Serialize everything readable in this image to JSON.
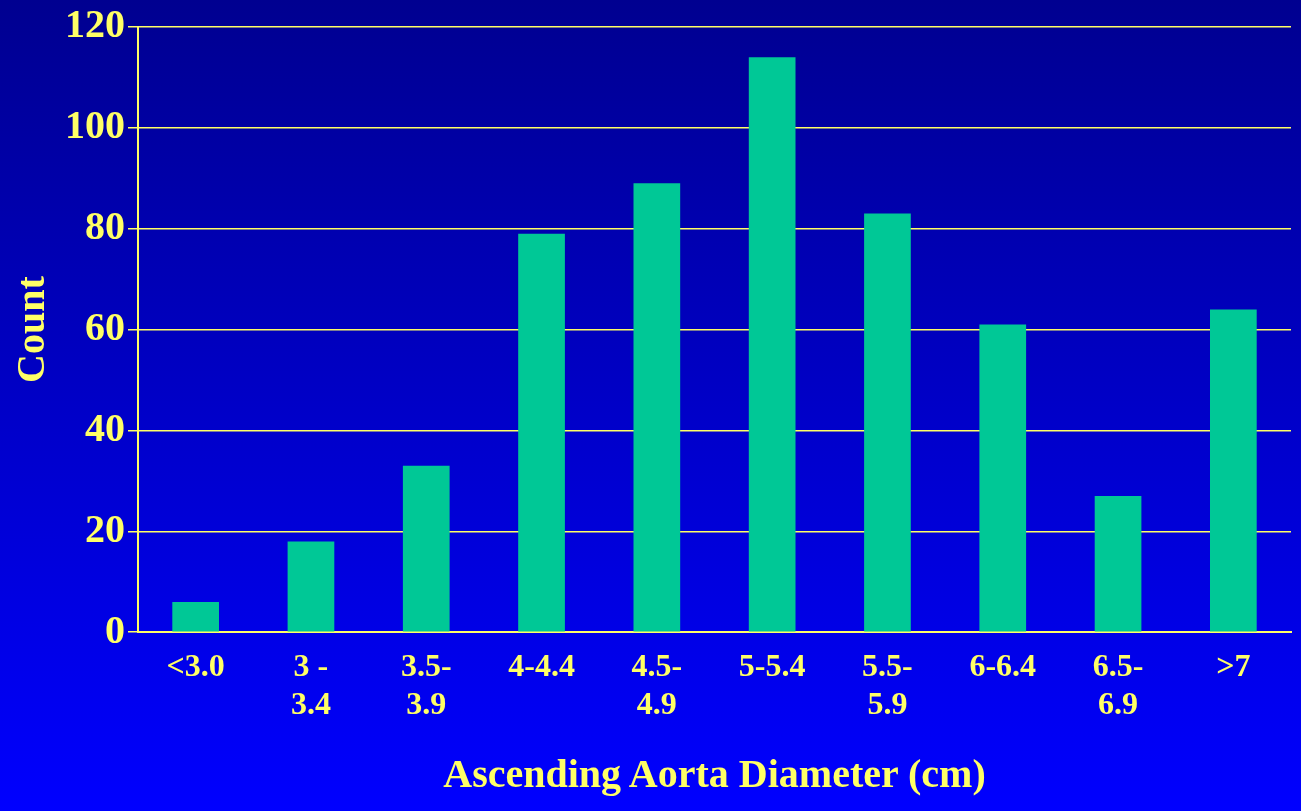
{
  "chart_data": {
    "type": "bar",
    "xlabel": "Ascending Aorta Diameter (cm)",
    "ylabel": "Count",
    "categories": [
      "<3.0",
      "3 - 3.4",
      "3.5-3.9",
      "4-4.4",
      "4.5-4.9",
      "5-5.4",
      "5.5-5.9",
      "6-6.4",
      "6.5-6.9",
      ">7"
    ],
    "values": [
      6,
      18,
      33,
      79,
      89,
      114,
      83,
      61,
      27,
      64
    ],
    "color": "#00c896",
    "ylim": [
      0,
      120
    ],
    "yticks": [
      0,
      20,
      40,
      60,
      80,
      100,
      120
    ],
    "grid": "y"
  }
}
